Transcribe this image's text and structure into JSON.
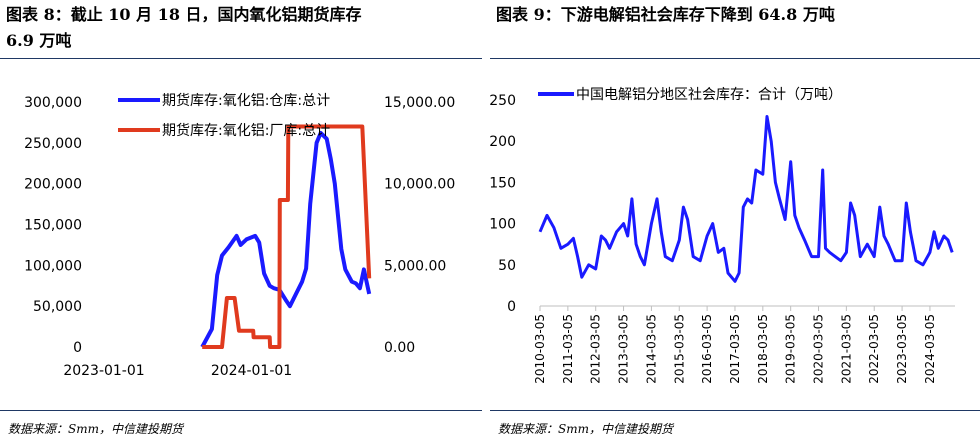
{
  "left": {
    "title_line1": "图表 8：截止 10 月 18 日，国内氧化铝期货库存",
    "title_line2": "6.9 万吨",
    "source": "数据来源：Smm，中信建投期货",
    "chart_data": {
      "type": "line",
      "x_ticks": [
        "2023-01-01",
        "2024-01-01"
      ],
      "y_left_ticks": [
        "0",
        "50,000",
        "100,000",
        "150,000",
        "200,000",
        "250,000",
        "300,000"
      ],
      "y_right_ticks": [
        "0.00",
        "5,000.00",
        "10,000.00",
        "15,000.00"
      ],
      "ylim_left": [
        0,
        300000
      ],
      "ylim_right": [
        0,
        15000
      ],
      "legend_position": "top",
      "series": [
        {
          "name": "期货库存:氧化铝:仓库:总计",
          "axis": "left",
          "color": "#1a1aff",
          "x": [
            "2023-09-01",
            "2023-09-25",
            "2023-10-08",
            "2023-10-20",
            "2023-11-05",
            "2023-11-25",
            "2023-12-05",
            "2023-12-20",
            "2024-01-10",
            "2024-01-20",
            "2024-02-01",
            "2024-02-15",
            "2024-02-25",
            "2024-03-10",
            "2024-03-25",
            "2024-04-05",
            "2024-04-20",
            "2024-05-05",
            "2024-05-15",
            "2024-05-25",
            "2024-06-10",
            "2024-06-20",
            "2024-07-05",
            "2024-07-15",
            "2024-07-25",
            "2024-08-10",
            "2024-08-20",
            "2024-09-05",
            "2024-09-15",
            "2024-09-25",
            "2024-10-05",
            "2024-10-18"
          ],
          "values": [
            0,
            22000,
            88000,
            112000,
            122000,
            136000,
            125000,
            132000,
            136000,
            128000,
            90000,
            75000,
            72000,
            70000,
            58000,
            50000,
            65000,
            80000,
            96000,
            175000,
            250000,
            262000,
            255000,
            230000,
            200000,
            120000,
            95000,
            80000,
            78000,
            72000,
            95000,
            65000
          ]
        },
        {
          "name": "期货库存:氧化铝:厂库:总计",
          "axis": "right",
          "color": "#e03a1e",
          "x": [
            "2023-09-01",
            "2023-10-20",
            "2023-11-01",
            "2023-11-20",
            "2023-12-01",
            "2024-01-05",
            "2024-01-06",
            "2024-02-15",
            "2024-02-16",
            "2024-03-10",
            "2024-03-11",
            "2024-03-31",
            "2024-04-01",
            "2024-04-30",
            "2024-05-01",
            "2024-09-30",
            "2024-10-01",
            "2024-10-18"
          ],
          "values": [
            0,
            0,
            3000,
            3000,
            1000,
            1000,
            600,
            600,
            0,
            0,
            9000,
            9000,
            13500,
            13500,
            13500,
            13500,
            13500,
            4200
          ]
        }
      ]
    }
  },
  "right": {
    "title": "图表 9：下游电解铝社会库存下降到 64.8 万吨",
    "source": "数据来源：Smm，中信建投期货",
    "chart_data": {
      "type": "line",
      "x_ticks": [
        "2010-03-05",
        "2011-03-05",
        "2012-03-05",
        "2013-03-05",
        "2014-03-05",
        "2015-03-05",
        "2016-03-05",
        "2017-03-05",
        "2018-03-05",
        "2019-03-05",
        "2020-03-05",
        "2021-03-05",
        "2022-03-05",
        "2023-03-05",
        "2024-03-05"
      ],
      "y_ticks": [
        "0",
        "50",
        "100",
        "150",
        "200",
        "250"
      ],
      "ylim": [
        0,
        250
      ],
      "legend_position": "top",
      "series": [
        {
          "name": "中国电解铝分地区社会库存：合计（万吨）",
          "color": "#1a1aff",
          "x": [
            2010.0,
            2010.25,
            2010.5,
            2010.75,
            2011.0,
            2011.2,
            2011.35,
            2011.5,
            2011.75,
            2012.0,
            2012.2,
            2012.35,
            2012.5,
            2012.75,
            2013.0,
            2013.15,
            2013.3,
            2013.45,
            2013.6,
            2013.75,
            2014.0,
            2014.2,
            2014.35,
            2014.5,
            2014.75,
            2015.0,
            2015.15,
            2015.3,
            2015.5,
            2015.75,
            2016.0,
            2016.2,
            2016.4,
            2016.6,
            2016.75,
            2017.0,
            2017.15,
            2017.3,
            2017.45,
            2017.6,
            2017.75,
            2018.0,
            2018.15,
            2018.3,
            2018.45,
            2018.6,
            2018.8,
            2019.0,
            2019.15,
            2019.3,
            2019.5,
            2019.75,
            2020.0,
            2020.15,
            2020.25,
            2020.4,
            2020.6,
            2020.8,
            2021.0,
            2021.15,
            2021.3,
            2021.5,
            2021.75,
            2022.0,
            2022.2,
            2022.35,
            2022.5,
            2022.75,
            2023.0,
            2023.15,
            2023.3,
            2023.5,
            2023.75,
            2024.0,
            2024.15,
            2024.3,
            2024.5,
            2024.65,
            2024.8
          ],
          "values": [
            90,
            110,
            95,
            70,
            75,
            82,
            60,
            35,
            50,
            45,
            85,
            80,
            70,
            90,
            100,
            85,
            130,
            75,
            60,
            50,
            100,
            130,
            90,
            60,
            55,
            80,
            120,
            105,
            60,
            55,
            85,
            100,
            65,
            70,
            40,
            30,
            40,
            120,
            130,
            125,
            165,
            160,
            230,
            200,
            150,
            130,
            105,
            175,
            110,
            95,
            80,
            60,
            60,
            165,
            70,
            65,
            60,
            55,
            65,
            125,
            110,
            60,
            75,
            60,
            120,
            85,
            75,
            55,
            55,
            125,
            90,
            55,
            50,
            65,
            90,
            70,
            85,
            80,
            65
          ]
        }
      ]
    }
  }
}
